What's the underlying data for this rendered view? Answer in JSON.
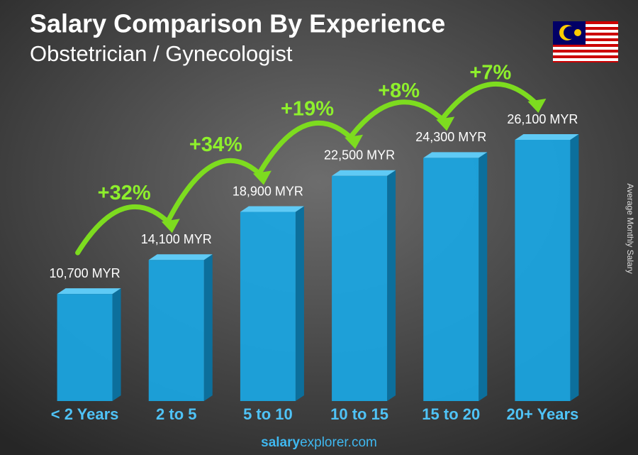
{
  "chart_data": {
    "type": "bar3d",
    "title": "Salary Comparison By Experience",
    "subtitle": "Obstetrician / Gynecologist",
    "y_label": "Average Monthly Salary",
    "categories": [
      "< 2 Years",
      "2 to 5",
      "5 to 10",
      "10 to 15",
      "15 to 20",
      "20+ Years"
    ],
    "values": [
      10700,
      14100,
      18900,
      22500,
      24300,
      26100
    ],
    "value_labels": [
      "10,700 MYR",
      "14,100 MYR",
      "18,900 MYR",
      "22,500 MYR",
      "24,300 MYR",
      "26,100 MYR"
    ],
    "annotations": [
      "+32%",
      "+34%",
      "+19%",
      "+8%",
      "+7%"
    ],
    "color": "#1aa7e4",
    "footer": {
      "brand_bold": "salary",
      "brand_rest": "explorer.com"
    }
  }
}
